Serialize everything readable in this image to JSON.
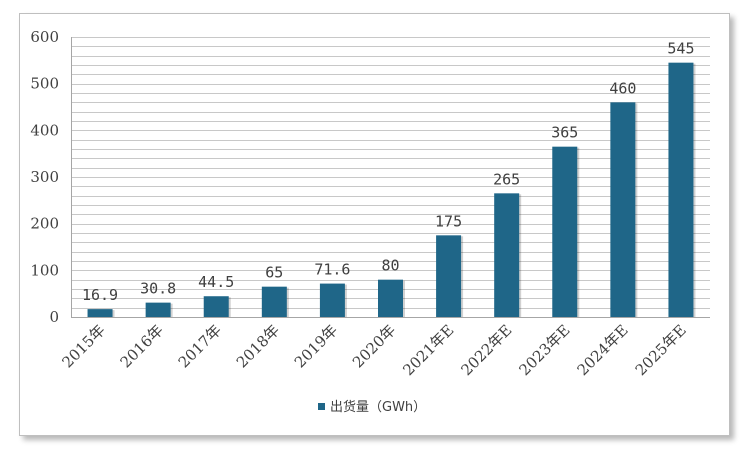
{
  "chart_data": {
    "type": "bar",
    "title": "",
    "xlabel": "",
    "ylabel": "",
    "categories": [
      "2015年",
      "2016年",
      "2017年",
      "2018年",
      "2019年",
      "2020年",
      "2021年E",
      "2022年E",
      "2023年E",
      "2024年E",
      "2025年E"
    ],
    "series": [
      {
        "name": "出货量（GWh）",
        "values": [
          16.9,
          30.8,
          44.5,
          65,
          71.6,
          80,
          175,
          265,
          365,
          460,
          545
        ],
        "value_labels": [
          "16.9",
          "30.8",
          "44.5",
          "65",
          "71.6",
          "80",
          "175",
          "265",
          "365",
          "460",
          "545"
        ],
        "color": "#1f6688"
      }
    ],
    "ylim": [
      0,
      600
    ],
    "yticks": [
      0,
      100,
      200,
      300,
      400,
      500,
      600
    ],
    "minor_gridline_step": 20,
    "grid": true,
    "legend_position": "bottom"
  },
  "colors": {
    "bar": "#1f6688",
    "grid": "#c8c8c8",
    "axis": "#a6a6a6",
    "text": "#404040"
  }
}
